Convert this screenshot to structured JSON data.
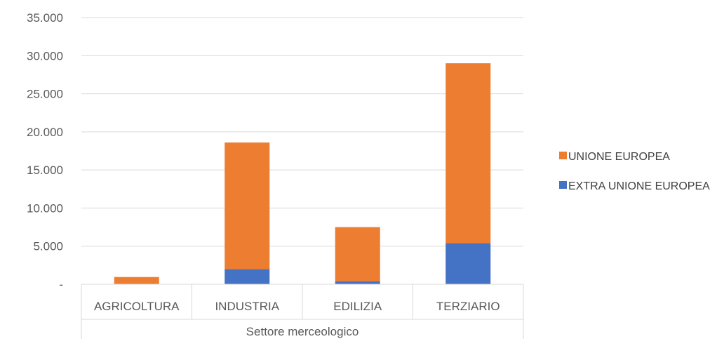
{
  "chart_data": {
    "type": "bar",
    "stacked": true,
    "categories": [
      "AGRICOLTURA",
      "INDUSTRIA",
      "EDILIZIA",
      "TERZIARIO"
    ],
    "series": [
      {
        "name": "EXTRA UNIONE EUROPEA",
        "color": "#4472C4",
        "values": [
          50,
          2000,
          400,
          5400
        ]
      },
      {
        "name": "UNIONE EUROPEA",
        "color": "#ED7D31",
        "values": [
          900,
          16600,
          7100,
          23600
        ]
      }
    ],
    "xlabel": "Settore merceologico",
    "ylabel": "",
    "ylim": [
      0,
      35000
    ],
    "yticks": [
      0,
      5000,
      10000,
      15000,
      20000,
      25000,
      30000,
      35000
    ],
    "ytick_labels": [
      "-",
      "5.000",
      "10.000",
      "15.000",
      "20.000",
      "25.000",
      "30.000",
      "35.000"
    ],
    "grid": true,
    "legend_position": "right",
    "legend_order": [
      "UNIONE EUROPEA",
      "EXTRA UNIONE EUROPEA"
    ]
  }
}
